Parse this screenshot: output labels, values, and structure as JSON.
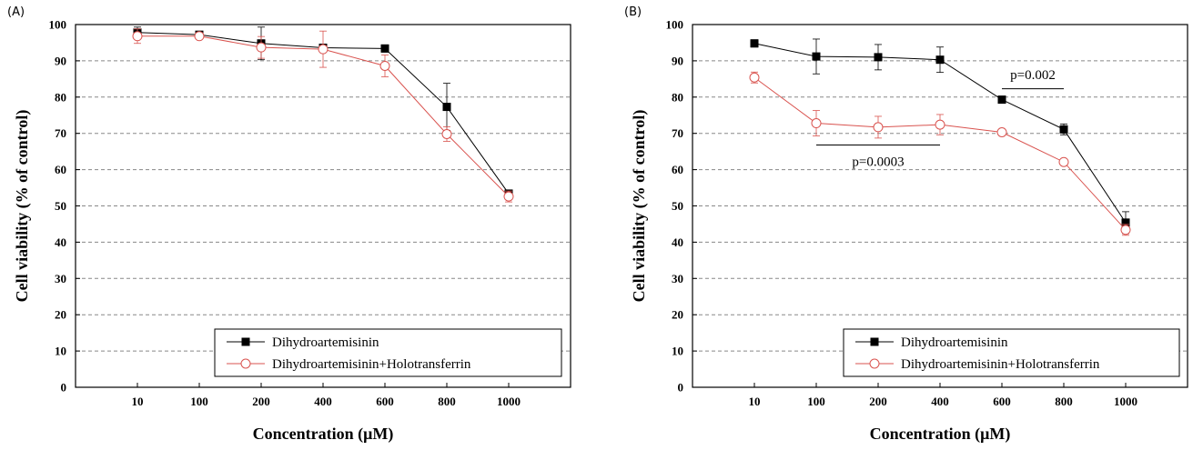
{
  "panels": [
    {
      "label": "(A)",
      "chart_data": {
        "type": "line",
        "categories": [
          "10",
          "100",
          "200",
          "400",
          "600",
          "800",
          "1000"
        ],
        "xlabel": "Concentration (μM)",
        "ylabel": "Cell viability (% of control)",
        "ylim": [
          0,
          100
        ],
        "yticks": [
          0,
          10,
          20,
          30,
          40,
          50,
          60,
          70,
          80,
          90,
          100
        ],
        "grid": true,
        "legend_position": "bottom-right",
        "series": [
          {
            "name": "Dihydroartemisinin",
            "marker": "filled-square",
            "color": "#000000",
            "values": [
              97.8,
              97.2,
              94.8,
              93.6,
              93.4,
              77.3,
              53.4
            ],
            "errors": [
              1.5,
              0.8,
              4.5,
              1.0,
              1.0,
              6.5,
              1.0
            ]
          },
          {
            "name": "Dihydroartemisinin+Holotransferrin",
            "marker": "open-circle",
            "color": "#d9534f",
            "values": [
              96.8,
              96.8,
              93.7,
              93.2,
              88.6,
              69.8,
              52.6
            ],
            "errors": [
              2.0,
              0.8,
              3.0,
              5.0,
              3.0,
              2.0,
              1.5
            ]
          }
        ],
        "annotations": []
      }
    },
    {
      "label": "(B)",
      "chart_data": {
        "type": "line",
        "categories": [
          "10",
          "100",
          "200",
          "400",
          "600",
          "800",
          "1000"
        ],
        "xlabel": "Concentration (μM)",
        "ylabel": "Cell viability (% of control)",
        "ylim": [
          0,
          100
        ],
        "yticks": [
          0,
          10,
          20,
          30,
          40,
          50,
          60,
          70,
          80,
          90,
          100
        ],
        "grid": true,
        "legend_position": "bottom-right",
        "series": [
          {
            "name": "Dihydroartemisinin",
            "marker": "filled-square",
            "color": "#000000",
            "values": [
              94.8,
              91.2,
              91.0,
              90.3,
              79.3,
              71.1,
              45.4
            ],
            "errors": [
              1.0,
              4.8,
              3.5,
              3.5,
              0.8,
              1.5,
              3.0
            ]
          },
          {
            "name": "Dihydroartemisinin+Holotransferrin",
            "marker": "open-circle",
            "color": "#d9534f",
            "values": [
              85.4,
              72.8,
              71.7,
              72.4,
              70.3,
              62.1,
              43.4
            ],
            "errors": [
              1.5,
              3.5,
              3.0,
              2.8,
              0.8,
              0.8,
              1.5
            ]
          }
        ],
        "annotations": [
          {
            "text": "p=0.002",
            "bar_from": "600",
            "bar_to": "800",
            "bar_y": 82.3,
            "text_y": 85.0
          },
          {
            "text": "p=0.0003",
            "bar_from": "100",
            "bar_to": "400",
            "bar_y": 66.8,
            "text_y": 61.0
          }
        ]
      }
    }
  ]
}
